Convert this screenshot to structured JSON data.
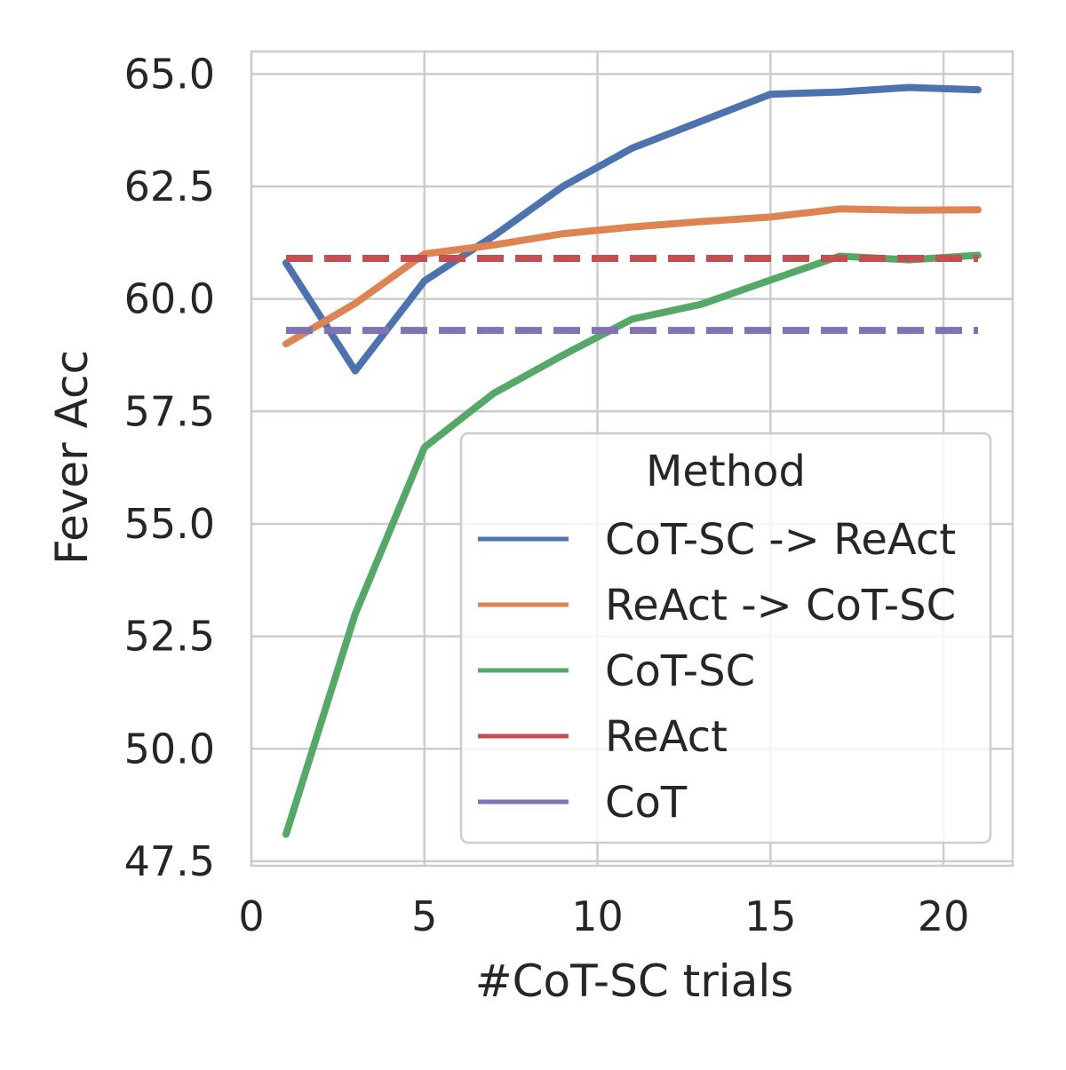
{
  "chart_data": {
    "type": "line",
    "title": "",
    "xlabel": "#CoT-SC trials",
    "ylabel": "Fever Acc",
    "xlim": [
      0,
      22
    ],
    "ylim": [
      47.4,
      65.5
    ],
    "x_ticks": [
      0,
      5,
      10,
      15,
      20
    ],
    "y_ticks": [
      47.5,
      50.0,
      52.5,
      55.0,
      57.5,
      60.0,
      62.5,
      65.0
    ],
    "x_tick_labels": [
      "0",
      "5",
      "10",
      "15",
      "20"
    ],
    "y_tick_labels": [
      "47.5",
      "50.0",
      "52.5",
      "55.0",
      "57.5",
      "60.0",
      "62.5",
      "65.0"
    ],
    "grid": true,
    "legend": {
      "title": "Method",
      "position": "lower-right"
    },
    "series": [
      {
        "name": "CoT-SC -> ReAct",
        "color": "#4c72b0",
        "style": "solid",
        "x": [
          1,
          3,
          5,
          7,
          9,
          11,
          13,
          15,
          17,
          19,
          21
        ],
        "y": [
          60.8,
          58.4,
          60.4,
          61.4,
          62.5,
          63.35,
          63.95,
          64.55,
          64.6,
          64.7,
          64.65
        ]
      },
      {
        "name": "ReAct -> CoT-SC",
        "color": "#dd8452",
        "style": "solid",
        "x": [
          1,
          3,
          5,
          7,
          9,
          11,
          13,
          15,
          17,
          19,
          21
        ],
        "y": [
          59.0,
          59.9,
          61.0,
          61.2,
          61.45,
          61.6,
          61.72,
          61.82,
          62.0,
          61.97,
          61.98
        ]
      },
      {
        "name": "CoT-SC",
        "color": "#55a868",
        "style": "solid",
        "x": [
          1,
          3,
          5,
          7,
          9,
          11,
          13,
          15,
          17,
          19,
          21
        ],
        "y": [
          48.1,
          53.0,
          56.7,
          57.9,
          58.75,
          59.55,
          59.88,
          60.42,
          60.95,
          60.87,
          60.97
        ]
      },
      {
        "name": "ReAct",
        "color": "#c44e52",
        "style": "dashed",
        "x": [
          1,
          21
        ],
        "y": [
          60.9,
          60.9
        ]
      },
      {
        "name": "CoT",
        "color": "#8172b3",
        "style": "dashed",
        "x": [
          1,
          21
        ],
        "y": [
          59.3,
          59.3
        ]
      }
    ]
  }
}
